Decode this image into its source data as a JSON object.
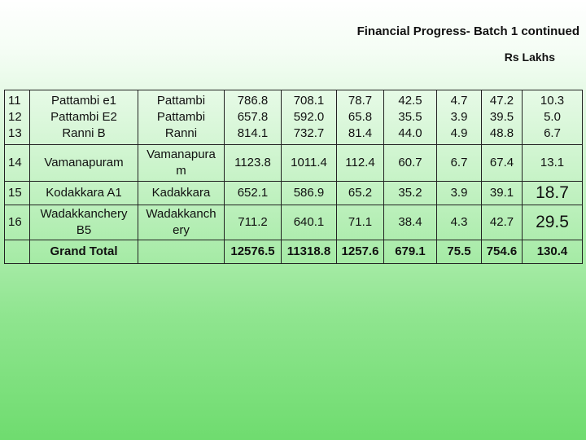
{
  "header": {
    "title": "Financial  Progress- Batch 1 continued",
    "unit": "Rs Lakhs"
  },
  "rows": [
    {
      "sl": [
        "11",
        "12",
        "13"
      ],
      "name": [
        "Pattambi e1",
        "Pattambi E2",
        "Ranni B"
      ],
      "block": [
        "Pattambi",
        "Pattambi",
        "Ranni"
      ],
      "values": [
        [
          "786.8",
          "657.8",
          "814.1"
        ],
        [
          "708.1",
          "592.0",
          "732.7"
        ],
        [
          "78.7",
          "65.8",
          "81.4"
        ],
        [
          "42.5",
          "35.5",
          "44.0"
        ],
        [
          "4.7",
          "3.9",
          "4.9"
        ],
        [
          "47.2",
          "39.5",
          "48.8"
        ],
        [
          "10.3",
          "5.0",
          "6.7"
        ]
      ]
    },
    {
      "sl": "14",
      "name": "Vamanapuram",
      "block": [
        "Vamanapura",
        "m"
      ],
      "values": [
        "1123.8",
        "1011.4",
        "112.4",
        "60.7",
        "6.7",
        "67.4",
        "13.1"
      ]
    },
    {
      "sl": "15",
      "name": "Kodakkara A1",
      "block": "Kadakkara",
      "values": [
        "652.1",
        "586.9",
        "65.2",
        "35.2",
        "3.9",
        "39.1",
        "18.7"
      ]
    },
    {
      "sl": "16",
      "name": [
        "Wadakkanchery",
        "B5"
      ],
      "block": [
        "Wadakkanch",
        "ery"
      ],
      "values": [
        "711.2",
        "640.1",
        "71.1",
        "38.4",
        "4.3",
        "42.7",
        "29.5"
      ]
    }
  ],
  "total": {
    "label": "Grand Total",
    "values": [
      "12576.5",
      "11318.8",
      "1257.6",
      "679.1",
      "75.5",
      "754.6",
      "130.4"
    ]
  }
}
